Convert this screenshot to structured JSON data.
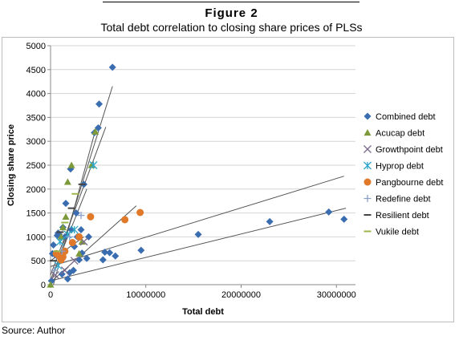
{
  "figure": {
    "label": "Figure 2",
    "title": "Total debt correlation to closing share prices of PLSs",
    "source": "Source: Author"
  },
  "colors": {
    "combined": "#3a6db0",
    "acucap": "#7d9a3b",
    "growthpoint": "#7a6a8c",
    "hyprop": "#2fa6c9",
    "pangbourne": "#e07a2a",
    "redefine": "#8aa0c8",
    "resilient": "#444444",
    "vukile": "#9bb64a",
    "trend": "#555555",
    "grid": "#d4d4d4"
  },
  "chart_data": {
    "type": "scatter",
    "xlabel": "Total debt",
    "ylabel": "Closing share price",
    "xlim": [
      0,
      32000000
    ],
    "ylim": [
      0,
      5000
    ],
    "xticks": [
      0,
      10000000,
      20000000,
      30000000
    ],
    "xtick_labels": [
      "0",
      "10000000",
      "20000000",
      "30000000"
    ],
    "yticks": [
      0,
      500,
      1000,
      1500,
      2000,
      2500,
      3000,
      3500,
      4000,
      4500,
      5000
    ],
    "ytick_labels": [
      "0",
      "500",
      "1000",
      "1500",
      "2000",
      "2500",
      "3000",
      "3500",
      "4000",
      "4500",
      "5000"
    ],
    "grid": "horizontal",
    "legend_position": "right",
    "series": [
      {
        "name": "Combined debt",
        "marker": "diamond",
        "color_key": "combined",
        "points": [
          [
            100000,
            80
          ],
          [
            200000,
            650
          ],
          [
            300000,
            830
          ],
          [
            500000,
            620
          ],
          [
            700000,
            1030
          ],
          [
            800000,
            1080
          ],
          [
            900000,
            1050
          ],
          [
            1000000,
            550
          ],
          [
            1200000,
            220
          ],
          [
            1300000,
            1200
          ],
          [
            1500000,
            1000
          ],
          [
            1600000,
            1700
          ],
          [
            1800000,
            120
          ],
          [
            2000000,
            250
          ],
          [
            2100000,
            2420
          ],
          [
            2200000,
            1150
          ],
          [
            2400000,
            300
          ],
          [
            2500000,
            800
          ],
          [
            2700000,
            1500
          ],
          [
            2800000,
            1000
          ],
          [
            3000000,
            520
          ],
          [
            3200000,
            1150
          ],
          [
            3300000,
            660
          ],
          [
            3500000,
            2100
          ],
          [
            3800000,
            550
          ],
          [
            4000000,
            1000
          ],
          [
            4600000,
            3180
          ],
          [
            5000000,
            3280
          ],
          [
            5100000,
            3780
          ],
          [
            5500000,
            520
          ],
          [
            5700000,
            680
          ],
          [
            6200000,
            670
          ],
          [
            6500000,
            4550
          ],
          [
            6800000,
            600
          ],
          [
            9500000,
            720
          ],
          [
            15500000,
            1050
          ],
          [
            23000000,
            1320
          ],
          [
            29200000,
            1520
          ],
          [
            30800000,
            1370
          ]
        ]
      },
      {
        "name": "Acucap debt",
        "marker": "triangle",
        "color_key": "acucap",
        "points": [
          [
            0,
            0
          ],
          [
            1100000,
            1000
          ],
          [
            1300000,
            1200
          ],
          [
            1600000,
            1420
          ],
          [
            1800000,
            2150
          ],
          [
            2200000,
            2500
          ],
          [
            3000000,
            650
          ],
          [
            3300000,
            900
          ],
          [
            4300000,
            2500
          ],
          [
            4700000,
            3200
          ]
        ]
      },
      {
        "name": "Growthpoint debt",
        "marker": "x",
        "color_key": "growthpoint",
        "points": [
          [
            500000,
            200
          ],
          [
            1500000,
            300
          ],
          [
            2500000,
            500
          ],
          [
            3500000,
            900
          ]
        ]
      },
      {
        "name": "Hyprop debt",
        "marker": "star",
        "color_key": "hyprop",
        "points": [
          [
            800000,
            400
          ],
          [
            1000000,
            900
          ],
          [
            1800000,
            1050
          ],
          [
            2500000,
            1150
          ],
          [
            4500000,
            2500
          ]
        ]
      },
      {
        "name": "Pangbourne debt",
        "marker": "circle",
        "color_key": "pangbourne",
        "points": [
          [
            600000,
            650
          ],
          [
            900000,
            600
          ],
          [
            1100000,
            520
          ],
          [
            1300000,
            580
          ],
          [
            1500000,
            700
          ],
          [
            2300000,
            880
          ],
          [
            3000000,
            1000
          ],
          [
            4200000,
            1420
          ],
          [
            7800000,
            1360
          ],
          [
            9400000,
            1510
          ]
        ]
      },
      {
        "name": "Redefine debt",
        "marker": "plus",
        "color_key": "redefine",
        "points": [
          [
            400000,
            300
          ],
          [
            1200000,
            700
          ],
          [
            2000000,
            1000
          ],
          [
            3200000,
            1450
          ]
        ]
      },
      {
        "name": "Resilient debt",
        "marker": "dash",
        "color_key": "resilient",
        "points": [
          [
            300000,
            500
          ],
          [
            1000000,
            1100
          ],
          [
            2200000,
            1600
          ],
          [
            3300000,
            2100
          ]
        ]
      },
      {
        "name": "Vukile debt",
        "marker": "dash",
        "color_key": "vukile",
        "points": [
          [
            700000,
            700
          ],
          [
            1500000,
            1300
          ],
          [
            2600000,
            1900
          ]
        ]
      }
    ],
    "trendlines": [
      {
        "from": [
          0,
          80
        ],
        "to": [
          31000000,
          1600
        ]
      },
      {
        "from": [
          0,
          380
        ],
        "to": [
          30800000,
          2270
        ]
      },
      {
        "from": [
          0,
          50
        ],
        "to": [
          9000000,
          1650
        ]
      },
      {
        "from": [
          0,
          0
        ],
        "to": [
          6500000,
          4150
        ]
      },
      {
        "from": [
          300000,
          0
        ],
        "to": [
          4800000,
          3300
        ]
      },
      {
        "from": [
          0,
          200
        ],
        "to": [
          5800000,
          3300
        ]
      },
      {
        "from": [
          0,
          100
        ],
        "to": [
          3800000,
          2000
        ]
      },
      {
        "from": [
          0,
          500
        ],
        "to": [
          3500000,
          1000
        ]
      }
    ]
  }
}
